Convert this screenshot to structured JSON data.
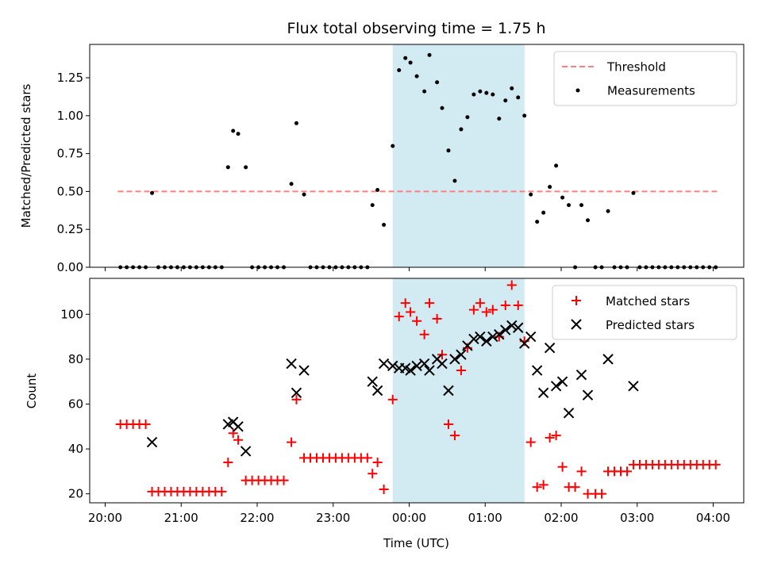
{
  "chart_data": [
    {
      "type": "scatter",
      "title": "Flux total observing time = 1.75 h",
      "xlabel": "",
      "ylabel": "Matched/Predicted stars",
      "xlim": [
        "20:00",
        "04:00"
      ],
      "ylim": [
        0,
        1.47
      ],
      "yticks": [
        0.0,
        0.25,
        0.5,
        0.75,
        1.0,
        1.25
      ],
      "ytick_labels": [
        "0.00",
        "0.25",
        "0.50",
        "0.75",
        "1.00",
        "1.25"
      ],
      "shaded_region": {
        "start": "23:47",
        "end": "01:31",
        "color": "#add8e6"
      },
      "legend": {
        "position": "top-right",
        "entries": [
          "Threshold",
          "Measurements"
        ]
      },
      "threshold": {
        "name": "Threshold",
        "y": 0.5,
        "x_start": "20:10",
        "x_end": "04:03",
        "color": "#ff7f7f",
        "style": "dashed"
      },
      "series": [
        {
          "name": "Measurements",
          "color": "#000000",
          "marker": "dot",
          "points": [
            [
              "20:12",
              0
            ],
            [
              "20:17",
              0
            ],
            [
              "20:22",
              0
            ],
            [
              "20:27",
              0
            ],
            [
              "20:32",
              0
            ],
            [
              "20:37",
              0.49
            ],
            [
              "20:42",
              0
            ],
            [
              "20:47",
              0
            ],
            [
              "20:52",
              0
            ],
            [
              "20:57",
              0
            ],
            [
              "21:02",
              0
            ],
            [
              "21:07",
              0
            ],
            [
              "21:12",
              0
            ],
            [
              "21:17",
              0
            ],
            [
              "21:22",
              0
            ],
            [
              "21:27",
              0
            ],
            [
              "21:32",
              0
            ],
            [
              "21:37",
              0.66
            ],
            [
              "21:41",
              0.9
            ],
            [
              "21:45",
              0.88
            ],
            [
              "21:51",
              0.66
            ],
            [
              "21:56",
              0
            ],
            [
              "22:01",
              0
            ],
            [
              "22:06",
              0
            ],
            [
              "22:11",
              0
            ],
            [
              "22:16",
              0
            ],
            [
              "22:21",
              0
            ],
            [
              "22:27",
              0.55
            ],
            [
              "22:31",
              0.95
            ],
            [
              "22:37",
              0.48
            ],
            [
              "22:42",
              0
            ],
            [
              "22:47",
              0
            ],
            [
              "22:52",
              0
            ],
            [
              "22:57",
              0
            ],
            [
              "23:02",
              0
            ],
            [
              "23:07",
              0
            ],
            [
              "23:12",
              0
            ],
            [
              "23:17",
              0
            ],
            [
              "23:22",
              0
            ],
            [
              "23:27",
              0
            ],
            [
              "23:31",
              0.41
            ],
            [
              "23:35",
              0.51
            ],
            [
              "23:40",
              0.28
            ],
            [
              "23:47",
              0.8
            ],
            [
              "23:52",
              1.3
            ],
            [
              "23:57",
              1.38
            ],
            [
              "24:01",
              1.35
            ],
            [
              "24:06",
              1.26
            ],
            [
              "24:12",
              1.16
            ],
            [
              "24:16",
              1.4
            ],
            [
              "24:22",
              1.22
            ],
            [
              "24:26",
              1.05
            ],
            [
              "24:31",
              0.77
            ],
            [
              "24:36",
              0.57
            ],
            [
              "24:41",
              0.91
            ],
            [
              "24:46",
              0.99
            ],
            [
              "24:51",
              1.14
            ],
            [
              "24:56",
              1.16
            ],
            [
              "25:01",
              1.15
            ],
            [
              "25:06",
              1.14
            ],
            [
              "25:11",
              0.98
            ],
            [
              "25:16",
              1.1
            ],
            [
              "25:21",
              1.18
            ],
            [
              "25:26",
              1.12
            ],
            [
              "25:31",
              1.0
            ],
            [
              "25:36",
              0.48
            ],
            [
              "25:41",
              0.3
            ],
            [
              "25:46",
              0.36
            ],
            [
              "25:51",
              0.53
            ],
            [
              "25:56",
              0.67
            ],
            [
              "26:01",
              0.46
            ],
            [
              "26:06",
              0.41
            ],
            [
              "26:11",
              0
            ],
            [
              "26:16",
              0.41
            ],
            [
              "26:21",
              0.31
            ],
            [
              "26:27",
              0
            ],
            [
              "26:32",
              0
            ],
            [
              "26:37",
              0.37
            ],
            [
              "26:42",
              0
            ],
            [
              "26:47",
              0
            ],
            [
              "26:52",
              0
            ],
            [
              "26:57",
              0.49
            ],
            [
              "27:02",
              0
            ],
            [
              "27:07",
              0
            ],
            [
              "27:12",
              0
            ],
            [
              "27:17",
              0
            ],
            [
              "27:22",
              0
            ],
            [
              "27:27",
              0
            ],
            [
              "27:32",
              0
            ],
            [
              "27:37",
              0
            ],
            [
              "27:42",
              0
            ],
            [
              "27:47",
              0
            ],
            [
              "27:52",
              0
            ],
            [
              "27:57",
              0
            ],
            [
              "28:02",
              0
            ]
          ]
        }
      ]
    },
    {
      "type": "scatter",
      "title": "",
      "xlabel": "Time (UTC)",
      "ylabel": "Count",
      "xlim": [
        "20:00",
        "04:00"
      ],
      "ylim": [
        16,
        116
      ],
      "yticks": [
        20,
        40,
        60,
        80,
        100
      ],
      "ytick_labels": [
        "20",
        "40",
        "60",
        "80",
        "100"
      ],
      "xticks": [
        "20:00",
        "21:00",
        "22:00",
        "23:00",
        "00:00",
        "01:00",
        "02:00",
        "03:00",
        "04:00"
      ],
      "shaded_region": {
        "start": "23:47",
        "end": "01:31",
        "color": "#add8e6"
      },
      "legend": {
        "position": "top-right",
        "entries": [
          "Matched stars",
          "Predicted stars"
        ]
      },
      "series": [
        {
          "name": "Matched stars",
          "color": "#ff0000",
          "marker": "plus",
          "points": [
            [
              "20:12",
              51
            ],
            [
              "20:17",
              51
            ],
            [
              "20:22",
              51
            ],
            [
              "20:27",
              51
            ],
            [
              "20:32",
              51
            ],
            [
              "20:37",
              21
            ],
            [
              "20:42",
              21
            ],
            [
              "20:47",
              21
            ],
            [
              "20:52",
              21
            ],
            [
              "20:57",
              21
            ],
            [
              "21:02",
              21
            ],
            [
              "21:07",
              21
            ],
            [
              "21:12",
              21
            ],
            [
              "21:17",
              21
            ],
            [
              "21:22",
              21
            ],
            [
              "21:27",
              21
            ],
            [
              "21:32",
              21
            ],
            [
              "21:37",
              34
            ],
            [
              "21:41",
              47
            ],
            [
              "21:45",
              44
            ],
            [
              "21:51",
              26
            ],
            [
              "21:56",
              26
            ],
            [
              "22:01",
              26
            ],
            [
              "22:06",
              26
            ],
            [
              "22:11",
              26
            ],
            [
              "22:16",
              26
            ],
            [
              "22:21",
              26
            ],
            [
              "22:27",
              43
            ],
            [
              "22:31",
              62
            ],
            [
              "22:37",
              36
            ],
            [
              "22:42",
              36
            ],
            [
              "22:47",
              36
            ],
            [
              "22:52",
              36
            ],
            [
              "22:57",
              36
            ],
            [
              "23:02",
              36
            ],
            [
              "23:07",
              36
            ],
            [
              "23:12",
              36
            ],
            [
              "23:17",
              36
            ],
            [
              "23:22",
              36
            ],
            [
              "23:27",
              36
            ],
            [
              "23:31",
              29
            ],
            [
              "23:35",
              34
            ],
            [
              "23:40",
              22
            ],
            [
              "23:47",
              62
            ],
            [
              "23:52",
              99
            ],
            [
              "23:57",
              105
            ],
            [
              "24:01",
              101
            ],
            [
              "24:06",
              97
            ],
            [
              "24:12",
              91
            ],
            [
              "24:16",
              105
            ],
            [
              "24:22",
              98
            ],
            [
              "24:26",
              82
            ],
            [
              "24:31",
              51
            ],
            [
              "24:36",
              46
            ],
            [
              "24:41",
              75
            ],
            [
              "24:46",
              85
            ],
            [
              "24:51",
              102
            ],
            [
              "24:56",
              105
            ],
            [
              "25:01",
              101
            ],
            [
              "25:06",
              102
            ],
            [
              "25:11",
              90
            ],
            [
              "25:16",
              104
            ],
            [
              "25:21",
              113
            ],
            [
              "25:26",
              104
            ],
            [
              "25:31",
              88
            ],
            [
              "25:36",
              43
            ],
            [
              "25:41",
              23
            ],
            [
              "25:46",
              24
            ],
            [
              "25:51",
              45
            ],
            [
              "25:56",
              46
            ],
            [
              "26:01",
              32
            ],
            [
              "26:06",
              23
            ],
            [
              "26:11",
              23
            ],
            [
              "26:16",
              30
            ],
            [
              "26:21",
              20
            ],
            [
              "26:27",
              20
            ],
            [
              "26:32",
              20
            ],
            [
              "26:37",
              30
            ],
            [
              "26:42",
              30
            ],
            [
              "26:47",
              30
            ],
            [
              "26:52",
              30
            ],
            [
              "26:57",
              33
            ],
            [
              "27:02",
              33
            ],
            [
              "27:07",
              33
            ],
            [
              "27:12",
              33
            ],
            [
              "27:17",
              33
            ],
            [
              "27:22",
              33
            ],
            [
              "27:27",
              33
            ],
            [
              "27:32",
              33
            ],
            [
              "27:37",
              33
            ],
            [
              "27:42",
              33
            ],
            [
              "27:47",
              33
            ],
            [
              "27:52",
              33
            ],
            [
              "27:57",
              33
            ],
            [
              "28:02",
              33
            ]
          ]
        },
        {
          "name": "Predicted stars",
          "color": "#000000",
          "marker": "x",
          "points": [
            [
              "20:37",
              43
            ],
            [
              "21:37",
              51
            ],
            [
              "21:41",
              52
            ],
            [
              "21:45",
              50
            ],
            [
              "21:51",
              39
            ],
            [
              "22:27",
              78
            ],
            [
              "22:31",
              65
            ],
            [
              "22:37",
              75
            ],
            [
              "23:31",
              70
            ],
            [
              "23:35",
              66
            ],
            [
              "23:40",
              78
            ],
            [
              "23:47",
              77
            ],
            [
              "23:52",
              76
            ],
            [
              "23:57",
              76
            ],
            [
              "24:01",
              75
            ],
            [
              "24:06",
              77
            ],
            [
              "24:12",
              78
            ],
            [
              "24:16",
              75
            ],
            [
              "24:22",
              80
            ],
            [
              "24:26",
              78
            ],
            [
              "24:31",
              66
            ],
            [
              "24:36",
              80
            ],
            [
              "24:41",
              82
            ],
            [
              "24:46",
              86
            ],
            [
              "24:51",
              89
            ],
            [
              "24:56",
              90
            ],
            [
              "25:01",
              88
            ],
            [
              "25:06",
              90
            ],
            [
              "25:11",
              91
            ],
            [
              "25:16",
              93
            ],
            [
              "25:21",
              95
            ],
            [
              "25:26",
              94
            ],
            [
              "25:31",
              87
            ],
            [
              "25:36",
              90
            ],
            [
              "25:41",
              75
            ],
            [
              "25:46",
              65
            ],
            [
              "25:51",
              85
            ],
            [
              "25:56",
              68
            ],
            [
              "26:01",
              70
            ],
            [
              "26:06",
              56
            ],
            [
              "26:16",
              73
            ],
            [
              "26:21",
              64
            ],
            [
              "26:37",
              80
            ],
            [
              "26:57",
              68
            ]
          ]
        }
      ]
    }
  ]
}
